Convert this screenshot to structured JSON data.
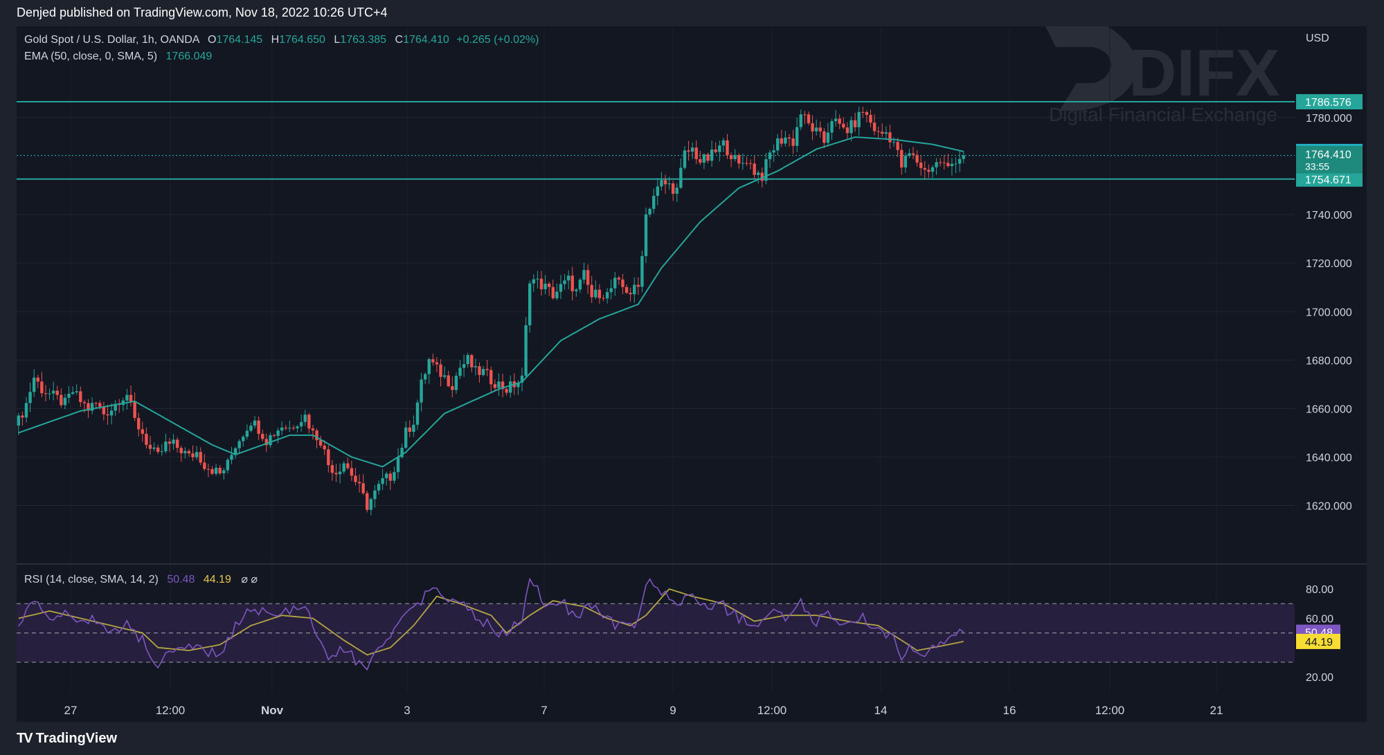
{
  "header": {
    "published": "Denjed published on TradingView.com, Nov 18, 2022 10:26 UTC+4"
  },
  "legend": {
    "symbol": "Gold Spot / U.S. Dollar, 1h, OANDA",
    "o_label": "O",
    "o_value": "1764.145",
    "h_label": "H",
    "h_value": "1764.650",
    "l_label": "L",
    "l_value": "1763.385",
    "c_label": "C",
    "c_value": "1764.410",
    "change": "+0.265 (+0.02%)",
    "ema_label": "EMA (50, close, 0, SMA, 5)",
    "ema_value": "1766.049",
    "rsi_label": "RSI (14, close, SMA, 14, 2)",
    "rsi_value": "50.48",
    "rsi_ma_value": "44.19",
    "rsi_extra": "⌀  ⌀"
  },
  "watermark": {
    "brand": "DIFX",
    "tagline": "Digital Financial Exchange"
  },
  "footer": {
    "brand": "TradingView",
    "logo_icon": "tradingview-logo-icon"
  },
  "colors": {
    "background": "#131722",
    "frame": "#1e222d",
    "up": "#26a69a",
    "down": "#ef5350",
    "ema": "#26a69a",
    "level": "#26a69a",
    "rsi": "#7e57c2",
    "rsi_ma": "#b5a642",
    "rsi_band": "#2a2142",
    "axis_text": "#d1d4dc"
  },
  "chart_data": [
    {
      "type": "candlestick",
      "currency": "USD",
      "y_ticks": [
        1620,
        1640,
        1660,
        1680,
        1700,
        1720,
        1740,
        1780
      ],
      "ylim": [
        1603,
        1800
      ],
      "x_tick_labels": [
        "27",
        "12:00",
        "Nov",
        "3",
        "7",
        "9",
        "12:00",
        "14",
        "16",
        "12:00",
        "21"
      ],
      "horizontal_levels": [
        {
          "value": 1786.576,
          "label": "1786.576",
          "style": "solid"
        },
        {
          "value": 1754.671,
          "label": "1754.671",
          "style": "solid"
        },
        {
          "value": 1764.41,
          "label": "1764.410",
          "style": "dotted"
        }
      ],
      "price_tags": [
        {
          "value": 1766.049,
          "label": "1766.049",
          "kind": "ema"
        },
        {
          "value": 1764.41,
          "label": "1764.410",
          "sub": "33:55",
          "kind": "last"
        }
      ],
      "close_path": [
        [
          0,
          1655
        ],
        [
          2,
          1662
        ],
        [
          4,
          1673
        ],
        [
          6,
          1668
        ],
        [
          8,
          1666
        ],
        [
          10,
          1664
        ],
        [
          12,
          1662
        ],
        [
          14,
          1667
        ],
        [
          16,
          1663
        ],
        [
          18,
          1660
        ],
        [
          20,
          1662
        ],
        [
          22,
          1658
        ],
        [
          24,
          1660
        ],
        [
          26,
          1664
        ],
        [
          28,
          1666
        ],
        [
          30,
          1655
        ],
        [
          32,
          1650
        ],
        [
          34,
          1643
        ],
        [
          36,
          1640
        ],
        [
          38,
          1645
        ],
        [
          40,
          1645
        ],
        [
          42,
          1643
        ],
        [
          44,
          1640
        ],
        [
          46,
          1642
        ],
        [
          48,
          1637
        ],
        [
          50,
          1635
        ],
        [
          52,
          1633
        ],
        [
          54,
          1637
        ],
        [
          56,
          1645
        ],
        [
          58,
          1650
        ],
        [
          60,
          1655
        ],
        [
          62,
          1652
        ],
        [
          64,
          1647
        ],
        [
          66,
          1650
        ],
        [
          68,
          1653
        ],
        [
          70,
          1652
        ],
        [
          72,
          1655
        ],
        [
          74,
          1657
        ],
        [
          76,
          1650
        ],
        [
          78,
          1647
        ],
        [
          80,
          1637
        ],
        [
          82,
          1634
        ],
        [
          84,
          1638
        ],
        [
          86,
          1633
        ],
        [
          88,
          1627
        ],
        [
          90,
          1620
        ],
        [
          92,
          1625
        ],
        [
          94,
          1630
        ],
        [
          96,
          1632
        ],
        [
          98,
          1640
        ],
        [
          100,
          1650
        ],
        [
          102,
          1655
        ],
        [
          104,
          1670
        ],
        [
          106,
          1680
        ],
        [
          108,
          1676
        ],
        [
          110,
          1673
        ],
        [
          112,
          1670
        ],
        [
          114,
          1677
        ],
        [
          116,
          1680
        ],
        [
          118,
          1675
        ],
        [
          120,
          1675
        ],
        [
          122,
          1672
        ],
        [
          124,
          1670
        ],
        [
          126,
          1668
        ],
        [
          128,
          1670
        ],
        [
          130,
          1672
        ],
        [
          132,
          1714
        ],
        [
          134,
          1712
        ],
        [
          136,
          1710
        ],
        [
          138,
          1707
        ],
        [
          140,
          1710
        ],
        [
          142,
          1713
        ],
        [
          144,
          1708
        ],
        [
          146,
          1715
        ],
        [
          148,
          1706
        ],
        [
          150,
          1708
        ],
        [
          152,
          1707
        ],
        [
          154,
          1712
        ],
        [
          156,
          1710
        ],
        [
          158,
          1708
        ],
        [
          160,
          1710
        ],
        [
          162,
          1740
        ],
        [
          164,
          1748
        ],
        [
          166,
          1753
        ],
        [
          168,
          1752
        ],
        [
          170,
          1750
        ],
        [
          172,
          1765
        ],
        [
          174,
          1767
        ],
        [
          176,
          1762
        ],
        [
          178,
          1763
        ],
        [
          180,
          1766
        ],
        [
          182,
          1769
        ],
        [
          184,
          1765
        ],
        [
          186,
          1760
        ],
        [
          188,
          1763
        ],
        [
          190,
          1758
        ],
        [
          192,
          1756
        ],
        [
          194,
          1765
        ],
        [
          196,
          1770
        ],
        [
          198,
          1772
        ],
        [
          200,
          1770
        ],
        [
          202,
          1782
        ],
        [
          204,
          1777
        ],
        [
          206,
          1774
        ],
        [
          208,
          1770
        ],
        [
          210,
          1780
        ],
        [
          212,
          1776
        ],
        [
          214,
          1775
        ],
        [
          216,
          1778
        ],
        [
          218,
          1783
        ],
        [
          220,
          1778
        ],
        [
          222,
          1773
        ],
        [
          224,
          1774
        ],
        [
          226,
          1770
        ],
        [
          228,
          1760
        ],
        [
          230,
          1765
        ],
        [
          232,
          1762
        ],
        [
          234,
          1758
        ],
        [
          236,
          1760
        ],
        [
          238,
          1762
        ],
        [
          240,
          1759
        ],
        [
          242,
          1763
        ],
        [
          244,
          1764.41
        ]
      ],
      "ema_path": [
        [
          0,
          1650
        ],
        [
          16,
          1659
        ],
        [
          30,
          1663
        ],
        [
          50,
          1645
        ],
        [
          56,
          1641
        ],
        [
          70,
          1649
        ],
        [
          76,
          1649
        ],
        [
          86,
          1640
        ],
        [
          94,
          1636
        ],
        [
          100,
          1642
        ],
        [
          110,
          1658
        ],
        [
          124,
          1668
        ],
        [
          130,
          1671
        ],
        [
          140,
          1688
        ],
        [
          150,
          1697
        ],
        [
          160,
          1703
        ],
        [
          166,
          1718
        ],
        [
          176,
          1737
        ],
        [
          186,
          1751
        ],
        [
          196,
          1758
        ],
        [
          206,
          1767
        ],
        [
          216,
          1772
        ],
        [
          226,
          1771
        ],
        [
          236,
          1769
        ],
        [
          244,
          1766.05
        ]
      ]
    },
    {
      "type": "line",
      "title": "RSI (14, close, SMA, 14, 2)",
      "y_ticks": [
        20,
        60,
        80
      ],
      "bands": [
        30,
        50,
        70
      ],
      "ylim": [
        12,
        90
      ],
      "price_tags": [
        {
          "value": 50.48,
          "label": "50.48",
          "kind": "rsi"
        },
        {
          "value": 44.19,
          "label": "44.19",
          "kind": "rsi_ma"
        }
      ],
      "series": [
        {
          "values_path": [
            [
              0,
              55
            ],
            [
              4,
              72
            ],
            [
              8,
              60
            ],
            [
              12,
              62
            ],
            [
              16,
              58
            ],
            [
              20,
              60
            ],
            [
              24,
              50
            ],
            [
              28,
              55
            ],
            [
              32,
              45
            ],
            [
              34,
              33
            ],
            [
              36,
              30
            ],
            [
              40,
              35
            ],
            [
              44,
              40
            ],
            [
              48,
              38
            ],
            [
              52,
              35
            ],
            [
              56,
              55
            ],
            [
              60,
              68
            ],
            [
              64,
              62
            ],
            [
              68,
              64
            ],
            [
              72,
              66
            ],
            [
              74,
              68
            ],
            [
              76,
              55
            ],
            [
              78,
              45
            ],
            [
              80,
              33
            ],
            [
              84,
              38
            ],
            [
              88,
              30
            ],
            [
              90,
              25
            ],
            [
              92,
              40
            ],
            [
              96,
              45
            ],
            [
              100,
              62
            ],
            [
              104,
              72
            ],
            [
              106,
              80
            ],
            [
              108,
              78
            ],
            [
              110,
              70
            ],
            [
              114,
              73
            ],
            [
              118,
              60
            ],
            [
              122,
              55
            ],
            [
              124,
              48
            ],
            [
              126,
              50
            ],
            [
              128,
              55
            ],
            [
              130,
              60
            ],
            [
              132,
              85
            ],
            [
              134,
              80
            ],
            [
              136,
              65
            ],
            [
              140,
              72
            ],
            [
              144,
              60
            ],
            [
              148,
              70
            ],
            [
              152,
              58
            ],
            [
              156,
              55
            ],
            [
              160,
              58
            ],
            [
              162,
              85
            ],
            [
              166,
              78
            ],
            [
              170,
              70
            ],
            [
              174,
              75
            ],
            [
              178,
              70
            ],
            [
              182,
              68
            ],
            [
              186,
              60
            ],
            [
              190,
              55
            ],
            [
              194,
              65
            ],
            [
              198,
              60
            ],
            [
              202,
              70
            ],
            [
              206,
              58
            ],
            [
              210,
              62
            ],
            [
              214,
              55
            ],
            [
              218,
              60
            ],
            [
              222,
              50
            ],
            [
              226,
              45
            ],
            [
              228,
              33
            ],
            [
              230,
              40
            ],
            [
              232,
              35
            ],
            [
              234,
              32
            ],
            [
              236,
              38
            ],
            [
              240,
              45
            ],
            [
              244,
              50.48
            ]
          ]
        },
        {
          "values_path": [
            [
              0,
              60
            ],
            [
              8,
              65
            ],
            [
              16,
              60
            ],
            [
              24,
              55
            ],
            [
              32,
              50
            ],
            [
              36,
              40
            ],
            [
              44,
              38
            ],
            [
              52,
              42
            ],
            [
              60,
              55
            ],
            [
              68,
              62
            ],
            [
              76,
              60
            ],
            [
              84,
              45
            ],
            [
              90,
              35
            ],
            [
              96,
              40
            ],
            [
              102,
              55
            ],
            [
              108,
              75
            ],
            [
              114,
              70
            ],
            [
              122,
              62
            ],
            [
              126,
              50
            ],
            [
              132,
              62
            ],
            [
              138,
              72
            ],
            [
              146,
              68
            ],
            [
              152,
              60
            ],
            [
              158,
              55
            ],
            [
              162,
              62
            ],
            [
              168,
              80
            ],
            [
              174,
              75
            ],
            [
              182,
              70
            ],
            [
              190,
              58
            ],
            [
              198,
              62
            ],
            [
              206,
              62
            ],
            [
              214,
              58
            ],
            [
              222,
              55
            ],
            [
              228,
              45
            ],
            [
              232,
              38
            ],
            [
              236,
              40
            ],
            [
              240,
              42
            ],
            [
              244,
              44.19
            ]
          ]
        }
      ]
    }
  ]
}
